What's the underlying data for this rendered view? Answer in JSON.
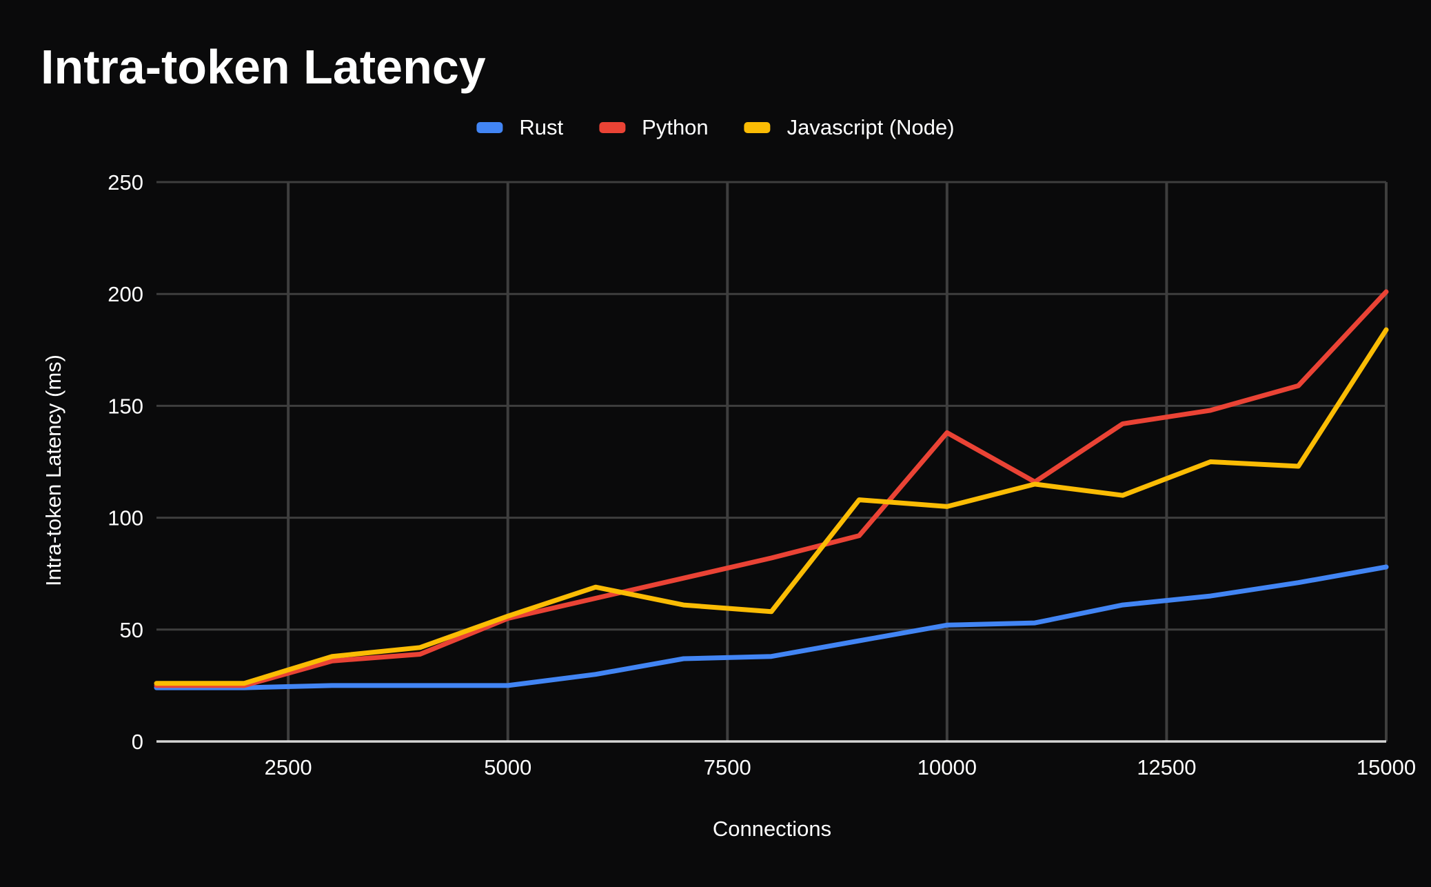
{
  "page": {
    "background": "#0a0a0b"
  },
  "header": {
    "title": "Intra-token Latency"
  },
  "legend": {
    "items": [
      {
        "label": "Rust",
        "color": "#4285f4"
      },
      {
        "label": "Python",
        "color": "#ea4335"
      },
      {
        "label": "Javascript (Node)",
        "color": "#fbbc04"
      }
    ]
  },
  "axes": {
    "x_title": "Connections",
    "y_title": "Intra-token Latency (ms)"
  },
  "chart_data": {
    "type": "line",
    "title": "Intra-token Latency",
    "xlabel": "Connections",
    "ylabel": "Intra-token Latency (ms)",
    "x": [
      1000,
      2000,
      3000,
      4000,
      5000,
      6000,
      7000,
      8000,
      9000,
      10000,
      11000,
      12000,
      13000,
      14000,
      15000
    ],
    "series": [
      {
        "name": "Rust",
        "color": "#4285f4",
        "values": [
          24,
          24,
          25,
          25,
          25,
          30,
          37,
          38,
          45,
          52,
          53,
          61,
          65,
          71,
          78
        ]
      },
      {
        "name": "Python",
        "color": "#ea4335",
        "values": [
          25,
          25,
          36,
          39,
          55,
          64,
          73,
          82,
          92,
          138,
          116,
          142,
          148,
          159,
          201
        ]
      },
      {
        "name": "Javascript (Node)",
        "color": "#fbbc04",
        "values": [
          26,
          26,
          38,
          42,
          56,
          69,
          61,
          58,
          108,
          105,
          115,
          110,
          125,
          123,
          184
        ]
      }
    ],
    "xlim": [
      1000,
      15000
    ],
    "ylim": [
      0,
      250
    ],
    "x_ticks": [
      2500,
      5000,
      7500,
      10000,
      12500,
      15000
    ],
    "y_ticks": [
      0,
      50,
      100,
      150,
      200,
      250
    ],
    "grid": true,
    "legend_position": "top",
    "colors": {
      "background": "#0a0a0b",
      "grid": "#3e3e3e",
      "axis_baseline": "#d5d5d5",
      "text": "#ffffff"
    }
  }
}
